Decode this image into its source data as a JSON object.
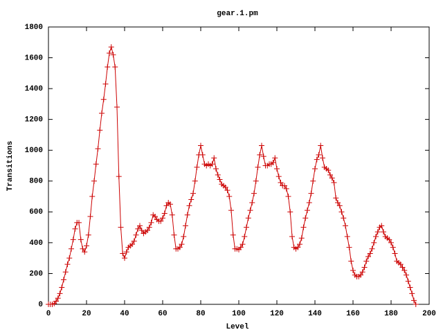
{
  "chart_data": {
    "type": "line",
    "title": "gear.1.pm",
    "xlabel": "Level",
    "ylabel": "Transitions",
    "color": "#cc0000",
    "x": [
      0,
      1,
      2,
      3,
      4,
      5,
      6,
      7,
      8,
      9,
      10,
      11,
      12,
      13,
      14,
      15,
      16,
      17,
      18,
      19,
      20,
      21,
      22,
      23,
      24,
      25,
      26,
      27,
      28,
      29,
      30,
      31,
      32,
      33,
      34,
      35,
      36,
      37,
      38,
      39,
      40,
      41,
      42,
      43,
      44,
      45,
      46,
      47,
      48,
      49,
      50,
      51,
      52,
      53,
      54,
      55,
      56,
      57,
      58,
      59,
      60,
      61,
      62,
      63,
      64,
      65,
      66,
      67,
      68,
      69,
      70,
      71,
      72,
      73,
      74,
      75,
      76,
      77,
      78,
      79,
      80,
      81,
      82,
      83,
      84,
      85,
      86,
      87,
      88,
      89,
      90,
      91,
      92,
      93,
      94,
      95,
      96,
      97,
      98,
      99,
      100,
      101,
      102,
      103,
      104,
      105,
      106,
      107,
      108,
      109,
      110,
      111,
      112,
      113,
      114,
      115,
      116,
      117,
      118,
      119,
      120,
      121,
      122,
      123,
      124,
      125,
      126,
      127,
      128,
      129,
      130,
      131,
      132,
      133,
      134,
      135,
      136,
      137,
      138,
      139,
      140,
      141,
      142,
      143,
      144,
      145,
      146,
      147,
      148,
      149,
      150,
      151,
      152,
      153,
      154,
      155,
      156,
      157,
      158,
      159,
      160,
      161,
      162,
      163,
      164,
      165,
      166,
      167,
      168,
      169,
      170,
      171,
      172,
      173,
      174,
      175,
      176,
      177,
      178,
      179,
      180,
      181,
      182,
      183,
      184,
      185,
      186,
      187,
      188,
      189,
      190,
      191,
      192,
      193
    ],
    "values": [
      0,
      0,
      0,
      5,
      20,
      40,
      70,
      110,
      160,
      210,
      260,
      300,
      360,
      420,
      490,
      530,
      530,
      420,
      360,
      340,
      380,
      450,
      570,
      700,
      800,
      910,
      1010,
      1130,
      1240,
      1330,
      1430,
      1540,
      1630,
      1670,
      1620,
      1540,
      1280,
      830,
      500,
      330,
      300,
      340,
      370,
      380,
      390,
      410,
      450,
      490,
      510,
      480,
      460,
      470,
      480,
      500,
      530,
      580,
      570,
      550,
      540,
      540,
      560,
      590,
      640,
      660,
      650,
      580,
      450,
      360,
      360,
      370,
      390,
      440,
      510,
      580,
      640,
      680,
      720,
      800,
      890,
      970,
      1030,
      970,
      910,
      900,
      910,
      900,
      910,
      950,
      880,
      840,
      810,
      780,
      770,
      760,
      740,
      700,
      610,
      450,
      360,
      360,
      355,
      370,
      390,
      440,
      500,
      560,
      610,
      660,
      720,
      800,
      890,
      970,
      1030,
      960,
      900,
      900,
      910,
      910,
      920,
      950,
      880,
      830,
      790,
      770,
      770,
      750,
      700,
      600,
      440,
      370,
      360,
      370,
      390,
      430,
      500,
      560,
      610,
      660,
      720,
      800,
      880,
      940,
      970,
      1030,
      950,
      890,
      880,
      870,
      840,
      820,
      790,
      690,
      660,
      640,
      600,
      560,
      510,
      440,
      370,
      280,
      220,
      190,
      180,
      180,
      190,
      210,
      240,
      280,
      310,
      330,
      360,
      400,
      440,
      470,
      500,
      510,
      470,
      440,
      430,
      420,
      400,
      370,
      330,
      280,
      270,
      260,
      240,
      220,
      190,
      150,
      110,
      70,
      25,
      0
    ],
    "xlim": [
      0,
      200
    ],
    "xticks": [
      0,
      20,
      40,
      60,
      80,
      100,
      120,
      140,
      160,
      180,
      200
    ],
    "ylim": [
      0,
      1800
    ],
    "yticks": [
      0,
      200,
      400,
      600,
      800,
      1000,
      1200,
      1400,
      1600,
      1800
    ]
  }
}
